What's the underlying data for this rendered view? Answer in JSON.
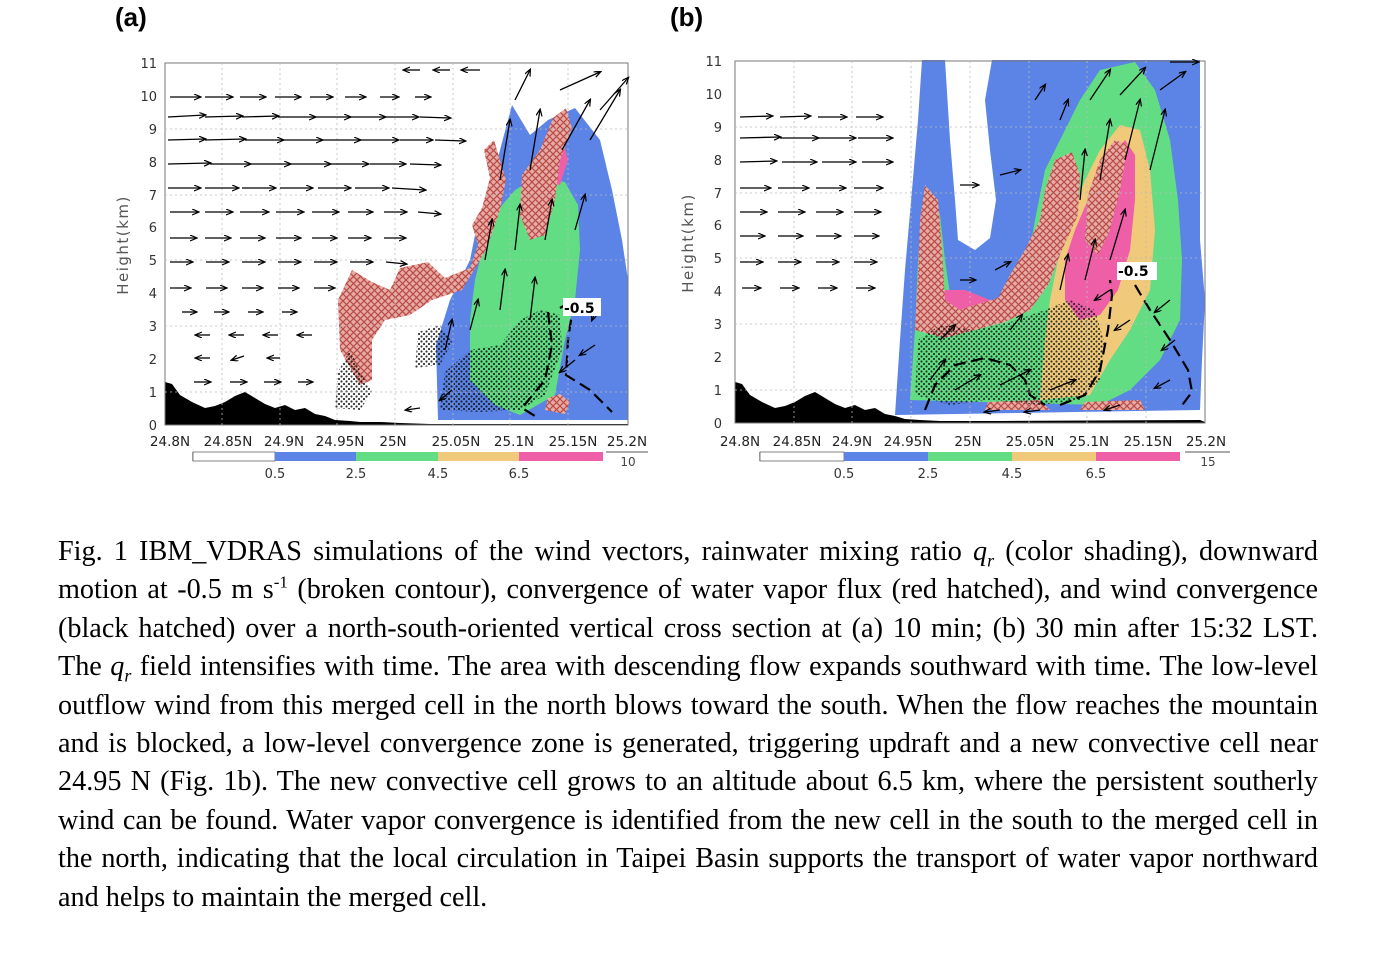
{
  "panels": [
    {
      "label": "(a)",
      "y_axis_label": "Height(km)",
      "y_ticks": [
        "0",
        "1",
        "2",
        "3",
        "4",
        "5",
        "6",
        "7",
        "8",
        "9",
        "10",
        "11"
      ],
      "x_ticks": [
        "24.8N",
        "24.85N",
        "24.9N",
        "24.95N",
        "25N",
        "25.05N",
        "25.1N",
        "25.15N",
        "25.2N"
      ],
      "contour_label": "-0.5",
      "vector_ref": "10",
      "colorbar_ticks": [
        "0.5",
        "2.5",
        "4.5",
        "6.5"
      ]
    },
    {
      "label": "(b)",
      "y_axis_label": "Height(km)",
      "y_ticks": [
        "0",
        "1",
        "2",
        "3",
        "4",
        "5",
        "6",
        "7",
        "8",
        "9",
        "10",
        "11"
      ],
      "x_ticks": [
        "24.8N",
        "24.85N",
        "24.9N",
        "24.95N",
        "25N",
        "25.05N",
        "25.1N",
        "25.15N",
        "25.2N"
      ],
      "contour_label": "-0.5",
      "vector_ref": "15",
      "colorbar_ticks": [
        "0.5",
        "2.5",
        "4.5",
        "6.5"
      ]
    }
  ],
  "colors": {
    "level_0_5": "#5b84e6",
    "level_2_5": "#62dd84",
    "level_4_5": "#f0c97a",
    "level_6_5": "#ee5fa8",
    "red_hatch": "#d9857f",
    "terrain": "#000000"
  },
  "caption": {
    "fig": "Fig. 1 IBM_VDRAS simulations of the wind vectors, rainwater mixing ratio ",
    "q": "q",
    "r": "r",
    "p1": " (color shading), downward motion at -0.5 m s",
    "sup": "-1",
    "p2": " (broken contour), convergence of water vapor flux (red hatched), and wind convergence (black hatched) over a north-south-oriented vertical cross section at (a) 10 min; (b) 30 min after 15:32 LST. The ",
    "q2": "q",
    "r2": "r",
    "p3": " field intensifies with time. The area with descending flow expands southward with time. The low-level outflow wind from this merged cell in the north blows toward the south. When the flow reaches the mountain and is blocked, a low-level convergence zone is generated, triggering updraft and a new convective cell near 24.95 N (Fig. 1b). The new convective cell grows to an altitude about 6.5 km, where the persistent southerly wind can be found. Water vapor convergence is identified from the new cell in the south to the merged cell in the north, indicating that the local circulation in Taipei Basin supports the transport of water vapor northward and helps to maintain the merged cell."
  }
}
